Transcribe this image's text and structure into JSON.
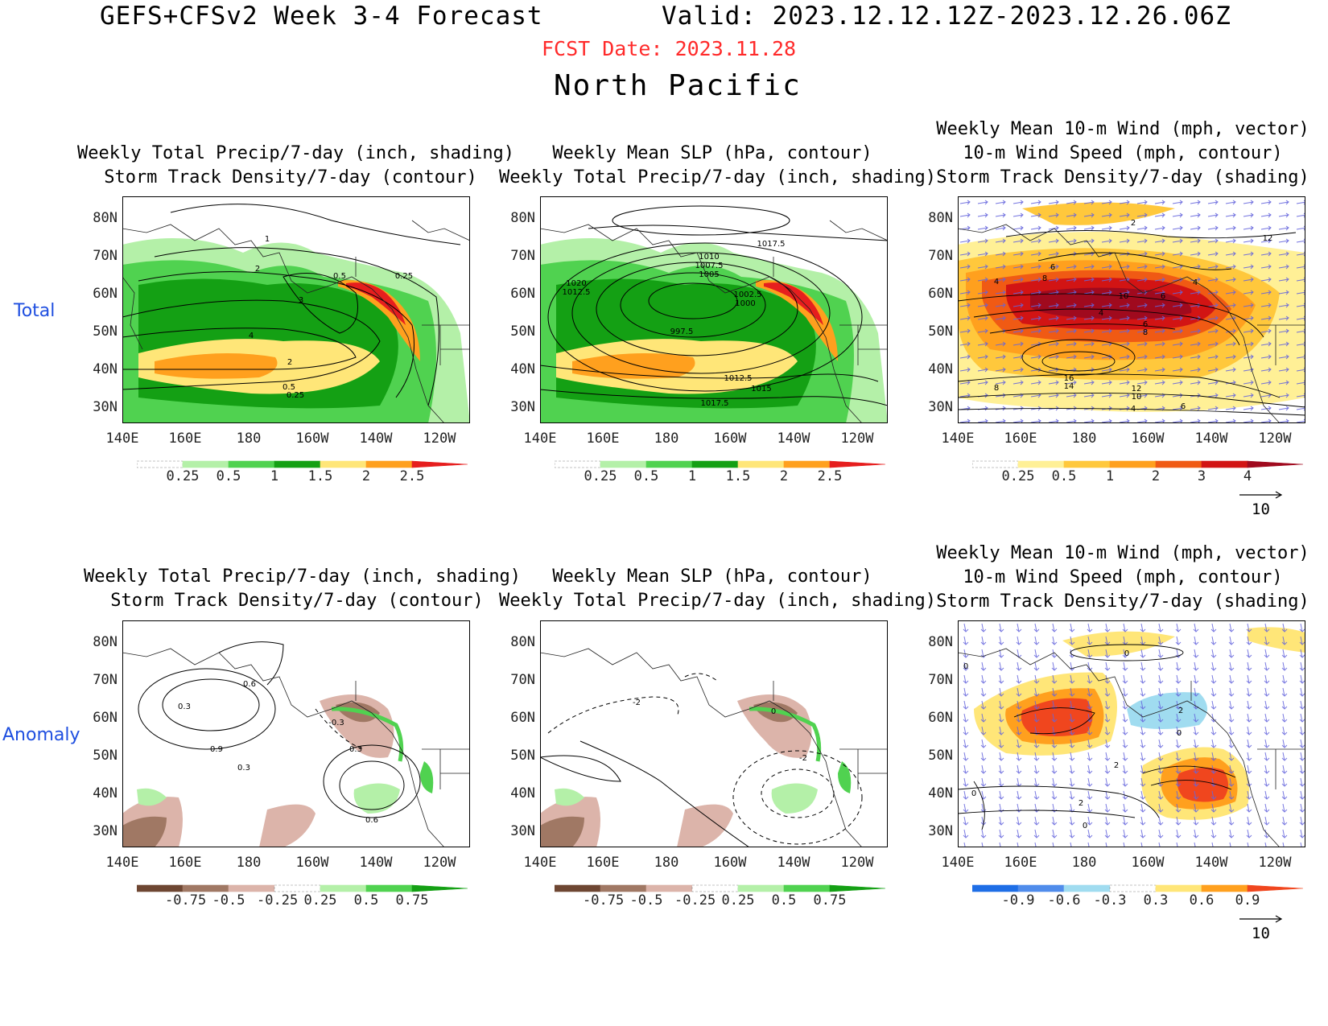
{
  "header": {
    "title": "GEFS+CFSv2 Week 3-4 Forecast",
    "valid": "Valid: 2023.12.12.12Z-2023.12.26.06Z",
    "fcst_date": "FCST Date: 2023.11.28",
    "region": "North Pacific"
  },
  "rows": {
    "total": "Total",
    "anomaly": "Anomaly"
  },
  "panels": {
    "col1_titles": [
      "Weekly Total Precip/7-day (inch, shading)",
      "Storm Track Density/7-day (contour)"
    ],
    "col2_titles": [
      "Weekly Mean SLP (hPa, contour)",
      "Weekly Total Precip/7-day (inch, shading)"
    ],
    "col3_titles": [
      "Weekly Mean 10-m Wind (mph, vector)",
      "10-m Wind Speed (mph, contour)",
      "Storm Track Density/7-day (shading)"
    ]
  },
  "axes": {
    "lat_labels": [
      "80N",
      "70N",
      "60N",
      "50N",
      "40N",
      "30N"
    ],
    "lon_labels": [
      "140E",
      "160E",
      "180",
      "160W",
      "140W",
      "120W"
    ]
  },
  "colorbars": {
    "precip_total": [
      "0.25",
      "0.5",
      "1",
      "1.5",
      "2",
      "2.5"
    ],
    "storm_total": [
      "0.25",
      "0.5",
      "1",
      "2",
      "3",
      "4"
    ],
    "precip_anom": [
      "-0.75",
      "-0.5",
      "-0.25",
      "0.25",
      "0.5",
      "0.75"
    ],
    "storm_anom": [
      "-0.9",
      "-0.6",
      "-0.3",
      "0.3",
      "0.6",
      "0.9"
    ],
    "colors": {
      "precip_total": [
        "#ffffff",
        "#b4f0a8",
        "#50d250",
        "#14a014",
        "#ffe678",
        "#ffa01e",
        "#e61e1e"
      ],
      "storm_total": [
        "#ffffff",
        "#fff096",
        "#ffc83c",
        "#ffa01e",
        "#f05a14",
        "#d21414",
        "#a00a1e"
      ],
      "precip_anom": [
        "#6e4632",
        "#a07864",
        "#dcb4aa",
        "#ffffff",
        "#b4f0a8",
        "#50d250",
        "#14a014"
      ],
      "storm_anom": [
        "#1e6ee6",
        "#508ceb",
        "#a0dcf0",
        "#ffffff",
        "#ffe678",
        "#ffa01e",
        "#f0461e"
      ]
    }
  },
  "vector_ref": "10",
  "contour_labels": {
    "p1_total": [
      "1",
      "2",
      "0.5",
      "0.25",
      "3",
      "4",
      "2",
      "0.5",
      "0.25"
    ],
    "p2_total": [
      "1017.5",
      "1010",
      "1007.5",
      "1005",
      "1020",
      "1012.5",
      "1002.5",
      "1000",
      "997.5",
      "1012.5",
      "1015",
      "1017.5"
    ],
    "p3_total": [
      "2",
      "12",
      "6",
      "8",
      "4",
      "10",
      "6",
      "4",
      "4",
      "6",
      "8",
      "16",
      "14",
      "12",
      "10",
      "8",
      "4",
      "6"
    ],
    "p1_anom": [
      "0.6",
      "0.3",
      "-0.3",
      "0.9",
      "0.3",
      "0.3",
      "0.6"
    ],
    "p2_anom": [
      "-2",
      "0",
      "-2"
    ],
    "p3_anom": [
      "0",
      "0",
      "2",
      "0",
      "2",
      "2",
      "0",
      "0"
    ]
  }
}
